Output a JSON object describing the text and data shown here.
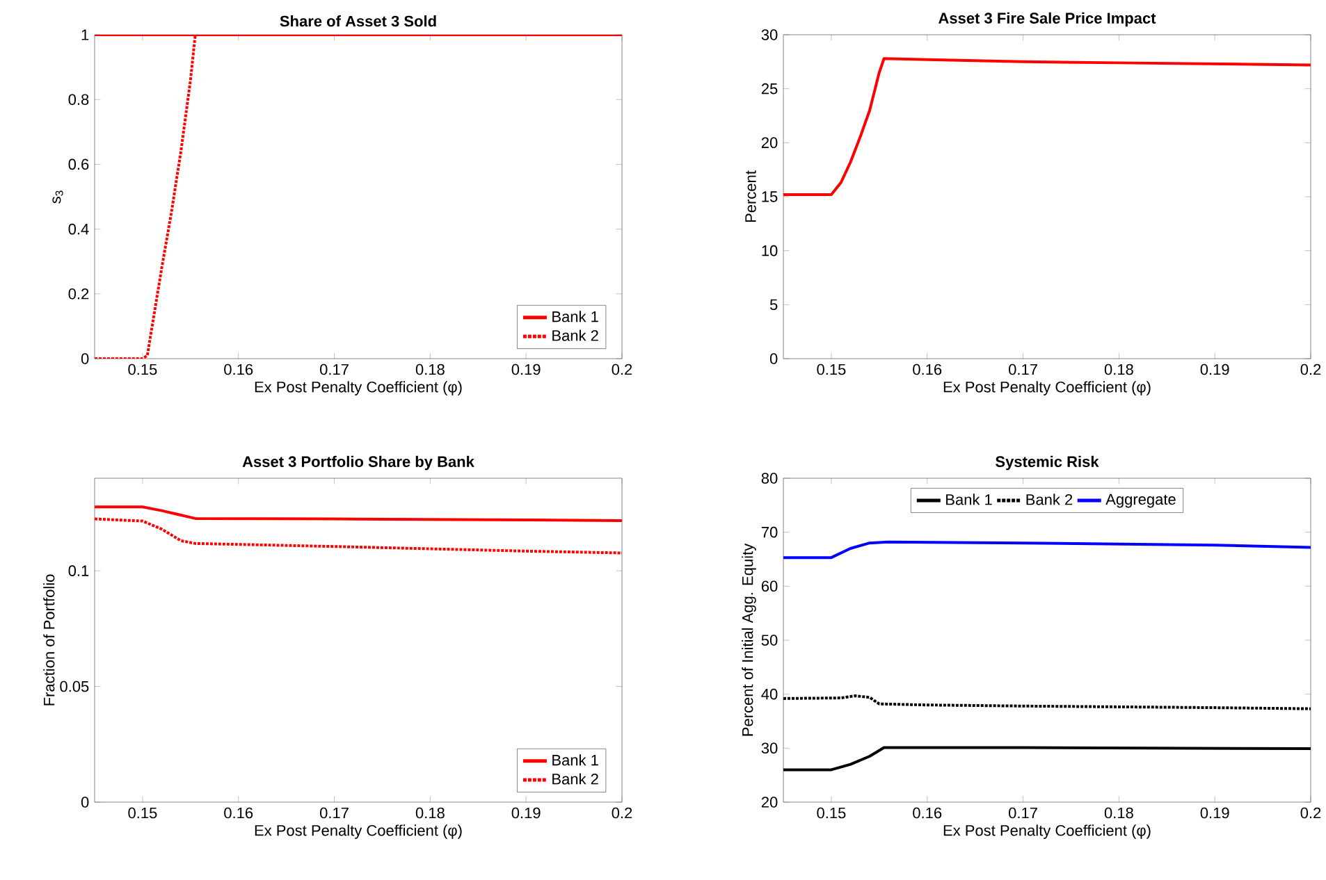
{
  "chart_data": [
    {
      "type": "line",
      "title": "Share of Asset 3 Sold",
      "xlabel": "Ex Post Penalty Coefficient (φ)",
      "ylabel": "s$_{3}$",
      "xlim": [
        0.145,
        0.2
      ],
      "xticks": [
        0.15,
        0.16,
        0.17,
        0.18,
        0.19,
        0.2
      ],
      "ylim": [
        0,
        1
      ],
      "yticks": [
        0,
        0.2,
        0.4,
        0.6,
        0.8,
        1
      ],
      "legend": "bottom right",
      "series": [
        {
          "name": "Bank 1",
          "color": "#ff0000",
          "line_style": "solid",
          "x": [
            0.145,
            0.15,
            0.16,
            0.17,
            0.18,
            0.19,
            0.2
          ],
          "values": [
            1,
            1,
            1,
            1,
            1,
            1,
            1
          ]
        },
        {
          "name": "Bank 2",
          "color": "#ff0000",
          "line_style": "dotted",
          "x": [
            0.145,
            0.15,
            0.1505,
            0.152,
            0.153,
            0.154,
            0.155,
            0.1555
          ],
          "values": [
            0,
            0,
            0.01,
            0.28,
            0.45,
            0.64,
            0.86,
            1
          ]
        }
      ]
    },
    {
      "type": "line",
      "title": "Asset 3 Fire Sale Price Impact",
      "xlabel": "Ex Post Penalty Coefficient (φ)",
      "ylabel": "Percent",
      "xlim": [
        0.145,
        0.2
      ],
      "xticks": [
        0.15,
        0.16,
        0.17,
        0.18,
        0.19,
        0.2
      ],
      "ylim": [
        0,
        30
      ],
      "yticks": [
        0,
        5,
        10,
        15,
        20,
        25,
        30
      ],
      "series": [
        {
          "color": "#ff0000",
          "line_style": "solid",
          "x": [
            0.145,
            0.15,
            0.151,
            0.152,
            0.153,
            0.154,
            0.155,
            0.1555,
            0.16,
            0.17,
            0.18,
            0.19,
            0.2
          ],
          "values": [
            15.2,
            15.2,
            16.3,
            18.2,
            20.5,
            23.0,
            26.5,
            27.8,
            27.7,
            27.5,
            27.4,
            27.3,
            27.2
          ]
        }
      ]
    },
    {
      "type": "line",
      "title": "Asset 3 Portfolio Share by Bank",
      "xlabel": "Ex Post Penalty Coefficient (φ)",
      "ylabel": "Fraction of Portfolio",
      "xlim": [
        0.145,
        0.2
      ],
      "xticks": [
        0.15,
        0.16,
        0.17,
        0.18,
        0.19,
        0.2
      ],
      "ylim": [
        0,
        0.14
      ],
      "yticks": [
        0,
        0.05,
        0.1
      ],
      "legend": "bottom right",
      "series": [
        {
          "name": "Bank 1",
          "color": "#ff0000",
          "line_style": "solid",
          "x": [
            0.145,
            0.15,
            0.152,
            0.1555,
            0.17,
            0.19,
            0.2
          ],
          "values": [
            0.1276,
            0.1276,
            0.126,
            0.1226,
            0.1224,
            0.122,
            0.1217
          ]
        },
        {
          "name": "Bank 2",
          "color": "#ff0000",
          "line_style": "dotted",
          "x": [
            0.145,
            0.15,
            0.152,
            0.154,
            0.1555,
            0.17,
            0.19,
            0.2
          ],
          "values": [
            0.1224,
            0.1215,
            0.118,
            0.113,
            0.1118,
            0.1105,
            0.1085,
            0.1077
          ]
        }
      ]
    },
    {
      "type": "line",
      "title": "Systemic Risk",
      "xlabel": "Ex Post Penalty Coefficient (φ)",
      "ylabel": "Percent of Initial Agg. Equity",
      "xlim": [
        0.145,
        0.2
      ],
      "xticks": [
        0.15,
        0.16,
        0.17,
        0.18,
        0.19,
        0.2
      ],
      "ylim": [
        20,
        80
      ],
      "yticks": [
        20,
        30,
        40,
        50,
        60,
        70,
        80
      ],
      "legend": "top",
      "series": [
        {
          "name": "Bank 1",
          "color": "#000000",
          "line_style": "solid",
          "x": [
            0.145,
            0.15,
            0.152,
            0.154,
            0.1555,
            0.17,
            0.2
          ],
          "values": [
            26.0,
            26.0,
            27.0,
            28.5,
            30.1,
            30.1,
            29.9
          ]
        },
        {
          "name": "Bank 2",
          "color": "#000000",
          "line_style": "dotted",
          "x": [
            0.145,
            0.151,
            0.1525,
            0.154,
            0.155,
            0.16,
            0.17,
            0.19,
            0.2
          ],
          "values": [
            39.2,
            39.3,
            39.7,
            39.4,
            38.2,
            38.0,
            37.8,
            37.5,
            37.3
          ]
        },
        {
          "name": "Aggregate",
          "color": "#0000ff",
          "line_style": "solid",
          "x": [
            0.145,
            0.15,
            0.152,
            0.154,
            0.156,
            0.17,
            0.19,
            0.2
          ],
          "values": [
            65.3,
            65.3,
            67.0,
            68.0,
            68.2,
            68.0,
            67.6,
            67.2
          ]
        }
      ]
    }
  ]
}
